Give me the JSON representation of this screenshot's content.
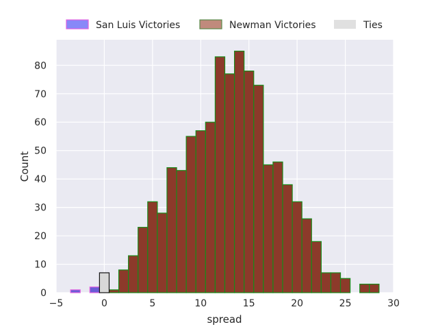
{
  "chart_data": {
    "type": "bar",
    "xlabel": "spread",
    "ylabel": "Count",
    "xlim": [
      -5,
      30
    ],
    "ylim": [
      0,
      89
    ],
    "xticks": [
      -5,
      0,
      5,
      10,
      15,
      20,
      25,
      30
    ],
    "yticks": [
      0,
      10,
      20,
      30,
      40,
      50,
      60,
      70,
      80
    ],
    "grid": true,
    "legend_position": "top",
    "bin_width": 1,
    "series": [
      {
        "name": "San Luis Victories",
        "fill": "#6a5cd6",
        "edge": "#e060e0",
        "bins": [
          {
            "x": -3,
            "count": 1
          },
          {
            "x": -1,
            "count": 2
          }
        ]
      },
      {
        "name": "Newman Victories",
        "fill": "#8c3a2a",
        "edge": "#1a8a1a",
        "bins": [
          {
            "x": 1,
            "count": 1
          },
          {
            "x": 2,
            "count": 8
          },
          {
            "x": 3,
            "count": 13
          },
          {
            "x": 4,
            "count": 23
          },
          {
            "x": 5,
            "count": 32
          },
          {
            "x": 6,
            "count": 28
          },
          {
            "x": 7,
            "count": 44
          },
          {
            "x": 8,
            "count": 43
          },
          {
            "x": 9,
            "count": 55
          },
          {
            "x": 10,
            "count": 57
          },
          {
            "x": 11,
            "count": 60
          },
          {
            "x": 12,
            "count": 83
          },
          {
            "x": 13,
            "count": 77
          },
          {
            "x": 14,
            "count": 85
          },
          {
            "x": 15,
            "count": 78
          },
          {
            "x": 16,
            "count": 73
          },
          {
            "x": 17,
            "count": 45
          },
          {
            "x": 18,
            "count": 46
          },
          {
            "x": 19,
            "count": 38
          },
          {
            "x": 20,
            "count": 32
          },
          {
            "x": 21,
            "count": 26
          },
          {
            "x": 22,
            "count": 18
          },
          {
            "x": 23,
            "count": 7
          },
          {
            "x": 24,
            "count": 7
          },
          {
            "x": 25,
            "count": 5
          },
          {
            "x": 27,
            "count": 3
          },
          {
            "x": 28,
            "count": 3
          }
        ]
      },
      {
        "name": "Ties",
        "fill": "#d8d8d8",
        "edge": "#111111",
        "bins": [
          {
            "x": 0,
            "count": 7
          }
        ]
      }
    ]
  },
  "colors": {
    "plot_background": "#eaeaf2",
    "grid": "#ffffff",
    "ties_legend_fill": "#e0e0e0"
  }
}
